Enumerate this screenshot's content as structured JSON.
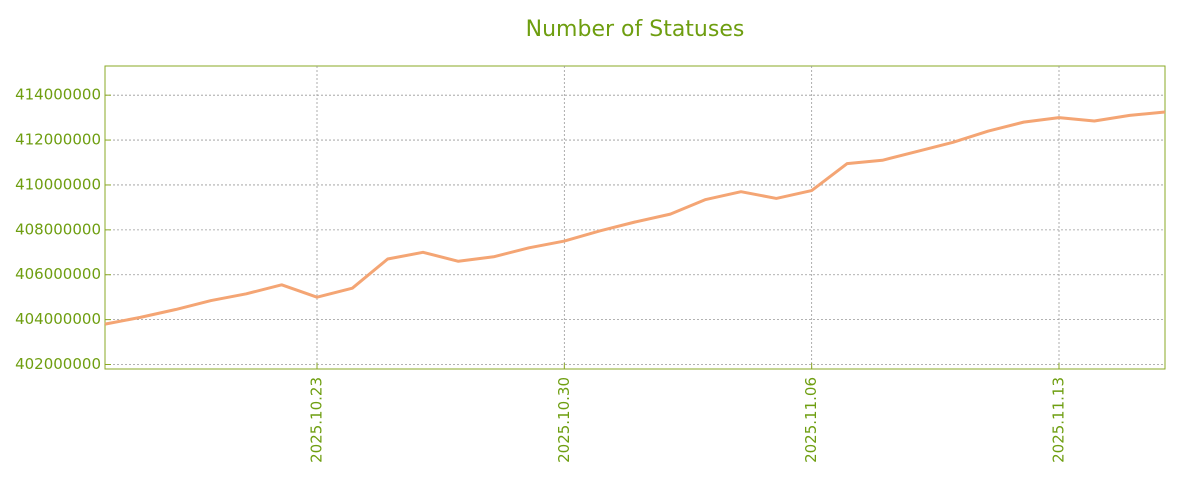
{
  "chart_data": {
    "type": "line",
    "title": "Number of Statuses",
    "x": [
      "2025.10.17",
      "2025.10.18",
      "2025.10.19",
      "2025.10.20",
      "2025.10.21",
      "2025.10.22",
      "2025.10.23",
      "2025.10.24",
      "2025.10.25",
      "2025.10.26",
      "2025.10.27",
      "2025.10.28",
      "2025.10.29",
      "2025.10.30",
      "2025.10.31",
      "2025.11.01",
      "2025.11.02",
      "2025.11.03",
      "2025.11.04",
      "2025.11.05",
      "2025.11.06",
      "2025.11.07",
      "2025.11.08",
      "2025.11.09",
      "2025.11.10",
      "2025.11.11",
      "2025.11.12",
      "2025.11.13",
      "2025.11.14",
      "2025.11.15",
      "2025.11.16"
    ],
    "series": [
      {
        "name": "Number of Statuses",
        "color": "#f4a574",
        "values": [
          403800000,
          404100000,
          404450000,
          404850000,
          405150000,
          405550000,
          405000000,
          405400000,
          406700000,
          407000000,
          406600000,
          406800000,
          407200000,
          407500000,
          407950000,
          408350000,
          408700000,
          409350000,
          409700000,
          409400000,
          409750000,
          410950000,
          411100000,
          411500000,
          411900000,
          412400000,
          412800000,
          413000000,
          412850000,
          413100000,
          413250000
        ]
      }
    ],
    "xlim": [
      "2025.10.17",
      "2025.11.16"
    ],
    "xticks": [
      "2025.10.23",
      "2025.10.30",
      "2025.11.06",
      "2025.11.13"
    ],
    "ylim": [
      401800000,
      415300000
    ],
    "yticks": [
      402000000,
      404000000,
      406000000,
      408000000,
      410000000,
      412000000,
      414000000
    ],
    "grid": true
  }
}
